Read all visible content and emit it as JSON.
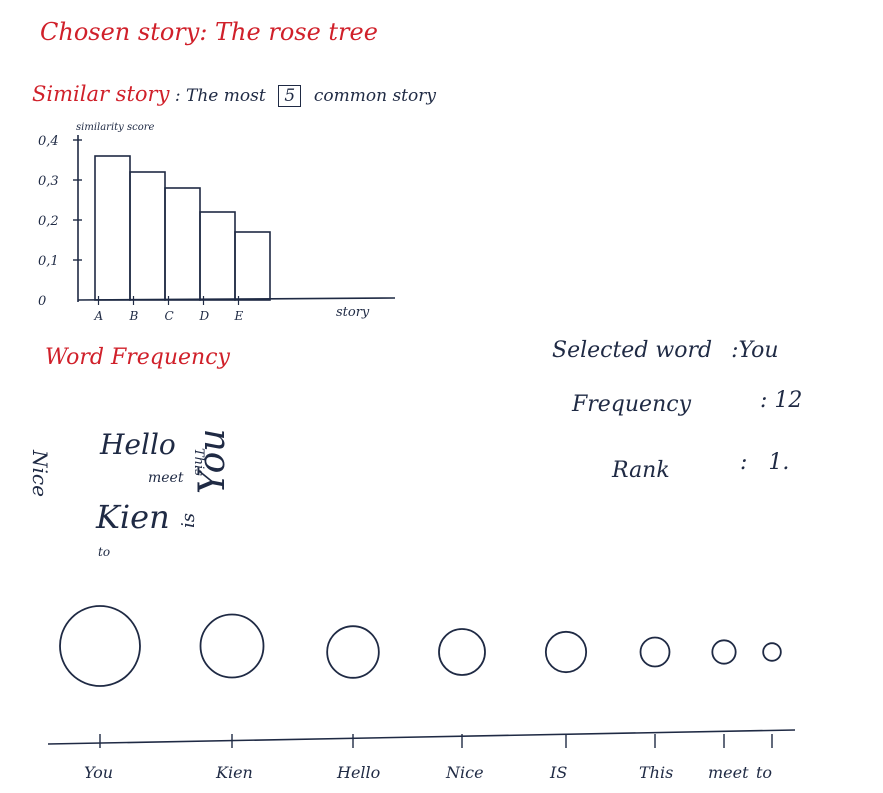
{
  "header": {
    "chosen_label": "Chosen story",
    "chosen_value": "The rose tree",
    "similar_label": "Similar story",
    "similar_text_pre": "The most",
    "similar_count": "5",
    "similar_text_post": "common story"
  },
  "chart_data": {
    "type": "bar",
    "categories": [
      "A",
      "B",
      "C",
      "D",
      "E"
    ],
    "values": [
      0.36,
      0.32,
      0.28,
      0.22,
      0.17
    ],
    "ylabel": "similarity score",
    "xlabel": "story",
    "yticks": [
      "0",
      "0,1",
      "0,2",
      "0,3",
      "0,4"
    ],
    "ylim": [
      0,
      0.4
    ]
  },
  "word_frequency": {
    "title": "Word Frequency",
    "cloud": [
      {
        "word": "Hello",
        "size": 28,
        "rotate": 0
      },
      {
        "word": "meet",
        "size": 14,
        "rotate": 0
      },
      {
        "word": "Kien",
        "size": 32,
        "rotate": 0
      },
      {
        "word": "to",
        "size": 12,
        "rotate": 0
      },
      {
        "word": "Nice",
        "size": 20,
        "rotate": 90
      },
      {
        "word": "This",
        "size": 13,
        "rotate": 90
      },
      {
        "word": "is",
        "size": 18,
        "rotate": -90
      },
      {
        "word": "You",
        "size": 36,
        "rotate": -90
      }
    ]
  },
  "selected": {
    "word_label": "Selected word",
    "word_value": "You",
    "freq_label": "Frequency",
    "freq_value": "12",
    "rank_label": "Rank",
    "rank_value": "1."
  },
  "bubbles": {
    "words": [
      "You",
      "Kien",
      "Hello",
      "Nice",
      "IS",
      "This",
      "meet",
      "to"
    ],
    "values": [
      12,
      9,
      7,
      6,
      5,
      3,
      2,
      1
    ]
  },
  "colors": {
    "accent": "#d0202a",
    "ink": "#1f2a44"
  }
}
